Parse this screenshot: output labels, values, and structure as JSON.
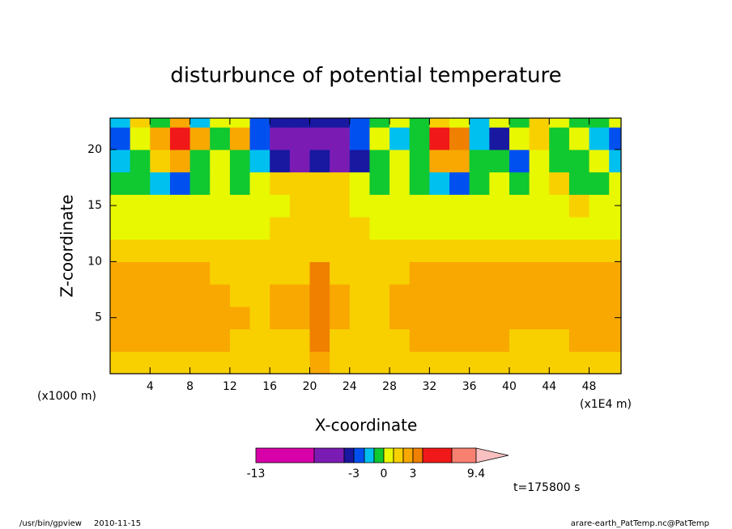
{
  "chart_data": {
    "type": "contour",
    "title": "disturbunce of potential temperature",
    "x_label": "X-coordinate",
    "y_label": "Z-coordinate",
    "x_unit": "(x1E4 m)",
    "y_unit": "(x1000 m)",
    "time_label": "t=175800 s",
    "footer_left": [
      "/usr/bin/gpview",
      "2010-11-15"
    ],
    "footer_right": "arare-earth_PatTemp.nc@PatTemp",
    "xlim": [
      0,
      51.2
    ],
    "ylim": [
      0,
      22.8
    ],
    "xticks": [
      4,
      8,
      12,
      16,
      20,
      24,
      28,
      32,
      36,
      40,
      44,
      48
    ],
    "yticks": [
      5,
      10,
      15,
      20
    ],
    "colorbar": {
      "levels": [
        -13,
        -7,
        -4,
        -3,
        -2,
        -1,
        0,
        1,
        2,
        3,
        4,
        7,
        9.4
      ],
      "colors": [
        "#d800a8",
        "#7a1cb4",
        "#1818a0",
        "#0050f0",
        "#00c0f0",
        "#10c830",
        "#e8f800",
        "#f8d000",
        "#f8a800",
        "#f08000",
        "#f01818",
        "#f88070",
        "#f8c0c0"
      ],
      "ticks": [
        -13,
        -3,
        0,
        3,
        9.4
      ]
    },
    "field": {
      "x": [
        1,
        3,
        5,
        7,
        9,
        11,
        13,
        15,
        17,
        19,
        21,
        23,
        25,
        27,
        29,
        31,
        33,
        35,
        37,
        39,
        41,
        43,
        45,
        47,
        49,
        51
      ],
      "z": [
        1,
        3,
        5,
        7,
        9,
        11,
        13,
        15,
        17,
        19,
        21,
        23
      ],
      "values": [
        [
          1.5,
          1.5,
          1.5,
          1.5,
          1.5,
          1.5,
          1.5,
          1.5,
          1.5,
          1.5,
          2.5,
          1.5,
          1.5,
          1.5,
          1.5,
          1.5,
          1.5,
          1.5,
          1.5,
          1.5,
          1.5,
          1.5,
          1.5,
          1.5,
          1.5,
          1.5
        ],
        [
          2.5,
          2.5,
          2.5,
          2.5,
          2.5,
          2.5,
          1.5,
          1.5,
          1.5,
          1.5,
          3.5,
          1.5,
          1.5,
          1.5,
          1.5,
          2.5,
          2.5,
          2.5,
          2.5,
          2.5,
          1.5,
          1.5,
          1.5,
          2.5,
          2.5,
          2.5
        ],
        [
          2.5,
          2.5,
          2.5,
          2.5,
          2.5,
          2.5,
          2.5,
          1.5,
          2.5,
          2.5,
          3.5,
          2.5,
          1.5,
          1.5,
          2.5,
          2.5,
          2.5,
          2.5,
          2.5,
          2.5,
          2.5,
          2.5,
          2.5,
          2.5,
          2.5,
          2.5
        ],
        [
          2.5,
          2.5,
          2.5,
          2.5,
          2.5,
          2.5,
          1.5,
          1.5,
          2.5,
          2.5,
          3.5,
          2.5,
          1.5,
          1.5,
          2.5,
          2.5,
          2.5,
          2.5,
          2.5,
          2.5,
          2.5,
          2.5,
          2.5,
          2.5,
          2.5,
          2.5
        ],
        [
          2.5,
          2.5,
          2.5,
          2.5,
          2.5,
          1.5,
          1.5,
          1.5,
          1.5,
          1.5,
          3.5,
          1.5,
          1.5,
          1.5,
          1.5,
          2.5,
          2.5,
          2.5,
          2.5,
          2.5,
          2.5,
          2.5,
          2.5,
          2.5,
          2.5,
          2.5
        ],
        [
          1.5,
          1.5,
          1.5,
          1.5,
          1.5,
          1.5,
          1.5,
          1.5,
          1.5,
          1.5,
          1.5,
          1.5,
          1.5,
          1.5,
          1.5,
          1.5,
          1.5,
          1.5,
          1.5,
          1.5,
          1.5,
          1.5,
          1.5,
          1.5,
          1.5,
          1.5
        ],
        [
          0.5,
          0.5,
          0.5,
          0.5,
          0.5,
          0.5,
          0.5,
          0.5,
          1.5,
          1.5,
          1.5,
          1.5,
          1.5,
          0.5,
          0.5,
          0.5,
          0.5,
          0.5,
          0.5,
          0.5,
          0.5,
          0.5,
          0.5,
          0.5,
          0.5,
          0.5
        ],
        [
          0.5,
          0.5,
          0.5,
          0.5,
          0.5,
          0.5,
          0.5,
          0.5,
          0.5,
          1.5,
          1.5,
          1.5,
          0.5,
          0.5,
          0.5,
          0.5,
          0.5,
          0.5,
          0.5,
          0.5,
          0.5,
          0.5,
          0.5,
          1.5,
          0.5,
          0.5
        ],
        [
          -0.5,
          -0.5,
          -1.5,
          -2.5,
          -0.5,
          0.5,
          -0.5,
          0.5,
          1.5,
          1.5,
          1.5,
          1.5,
          0.5,
          -0.5,
          0.5,
          -0.5,
          -1.5,
          -2.5,
          -0.5,
          0.5,
          -0.5,
          0.5,
          1.5,
          -0.5,
          -0.5,
          0.5
        ],
        [
          -1.5,
          -0.5,
          1.5,
          2.5,
          -0.5,
          0.5,
          -0.5,
          -1.5,
          -3.5,
          -5.5,
          -3.5,
          -5.5,
          -3.5,
          -0.5,
          0.5,
          -0.5,
          2.5,
          2.5,
          -0.5,
          -0.5,
          -2.5,
          0.5,
          -0.5,
          -0.5,
          0.5,
          -1.5
        ],
        [
          -2.5,
          0.5,
          2.5,
          5.5,
          2.5,
          -0.5,
          2.5,
          -2.5,
          -5.5,
          -5.5,
          -5.5,
          -5.5,
          -2.5,
          0.5,
          -1.5,
          -0.5,
          5.5,
          3.5,
          -1.5,
          -3.5,
          0.5,
          1.5,
          -0.5,
          0.5,
          -1.5,
          -2.5
        ],
        [
          -1.5,
          1.5,
          -0.5,
          2.5,
          -1.5,
          0.5,
          0.5,
          -2.5,
          -3.5,
          -3.5,
          -3.5,
          -3.5,
          -2.5,
          -0.5,
          0.5,
          -0.5,
          1.5,
          0.5,
          -1.5,
          0.5,
          -0.5,
          1.5,
          0.5,
          -0.5,
          -0.5,
          0.5
        ]
      ]
    }
  }
}
